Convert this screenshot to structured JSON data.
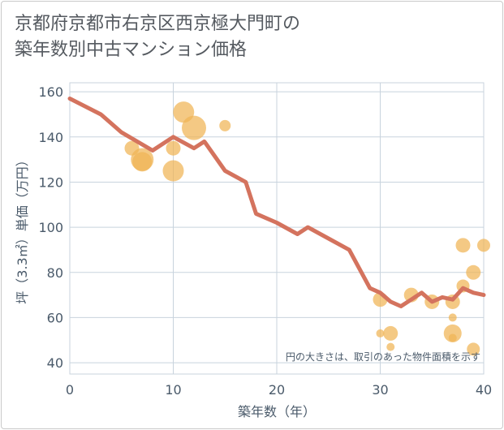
{
  "title": {
    "line1": "京都府京都市右京区西京極大門町の",
    "line2": "築年数別中古マンション価格"
  },
  "colors": {
    "line": "#d4735e",
    "bubble": "#f0b455",
    "grid": "#c8d3dd",
    "text": "#4a5a6a"
  },
  "chart_data": {
    "type": "scatter",
    "xlabel": "築年数（年）",
    "ylabel": "坪（3.3㎡）単価（万円）",
    "xlim": [
      0,
      40
    ],
    "ylim": [
      35,
      164
    ],
    "x_ticks": [
      0,
      10,
      20,
      30,
      40
    ],
    "y_ticks": [
      40,
      60,
      80,
      100,
      120,
      140,
      160
    ],
    "grid": true,
    "note": "円の大きさは、取引のあった物件面積を示す",
    "series": [
      {
        "kind": "bubble",
        "points": [
          {
            "x": 6,
            "y": 135,
            "size": 9
          },
          {
            "x": 7,
            "y": 130,
            "size": 14
          },
          {
            "x": 7,
            "y": 129,
            "size": 12
          },
          {
            "x": 10,
            "y": 135,
            "size": 9
          },
          {
            "x": 10,
            "y": 125,
            "size": 13
          },
          {
            "x": 11,
            "y": 151,
            "size": 13
          },
          {
            "x": 12,
            "y": 144,
            "size": 15
          },
          {
            "x": 15,
            "y": 145,
            "size": 7
          },
          {
            "x": 30,
            "y": 68,
            "size": 9
          },
          {
            "x": 30,
            "y": 53,
            "size": 5
          },
          {
            "x": 31,
            "y": 53,
            "size": 9
          },
          {
            "x": 31,
            "y": 47,
            "size": 5
          },
          {
            "x": 33,
            "y": 70,
            "size": 9
          },
          {
            "x": 35,
            "y": 67,
            "size": 9
          },
          {
            "x": 37,
            "y": 67,
            "size": 9
          },
          {
            "x": 37,
            "y": 60,
            "size": 5
          },
          {
            "x": 37,
            "y": 53,
            "size": 11
          },
          {
            "x": 37,
            "y": 51,
            "size": 5
          },
          {
            "x": 38,
            "y": 92,
            "size": 9
          },
          {
            "x": 38,
            "y": 74,
            "size": 8
          },
          {
            "x": 39,
            "y": 80,
            "size": 9
          },
          {
            "x": 39,
            "y": 46,
            "size": 8
          },
          {
            "x": 40,
            "y": 92,
            "size": 8
          }
        ]
      },
      {
        "kind": "line",
        "x": [
          0,
          3,
          5,
          8,
          10,
          12,
          13,
          15,
          17,
          18,
          20,
          22,
          23,
          25,
          27,
          29,
          30,
          31,
          32,
          33,
          34,
          35,
          36,
          37,
          38,
          39,
          40
        ],
        "values": [
          157,
          150,
          142,
          134,
          140,
          135,
          138,
          125,
          120,
          106,
          102,
          97,
          100,
          95,
          90,
          73,
          71,
          67,
          65,
          68,
          71,
          67,
          69,
          68,
          73,
          71,
          70
        ]
      }
    ]
  }
}
